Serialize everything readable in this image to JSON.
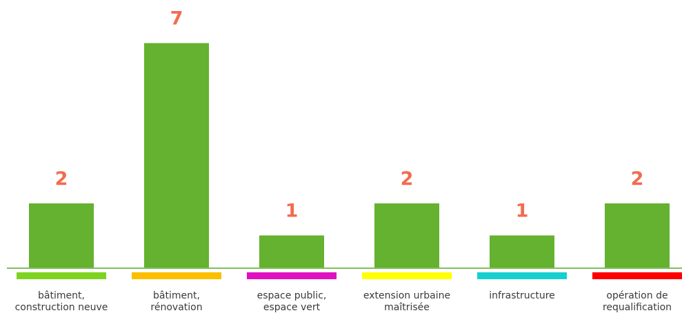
{
  "chart_data": {
    "type": "bar",
    "categories": [
      [
        "bâtiment,",
        "construction neuve"
      ],
      [
        "bâtiment,",
        "rénovation"
      ],
      [
        "espace public,",
        "espace vert"
      ],
      [
        "extension urbaine",
        "maîtrisée"
      ],
      [
        "infrastructure"
      ],
      [
        "opération de",
        "requalification"
      ]
    ],
    "values": [
      2,
      7,
      1,
      2,
      1,
      2
    ],
    "category_colors": [
      "#7ed321",
      "#fbbf00",
      "#e010c0",
      "#ffff00",
      "#16d0d0",
      "#ff0000"
    ],
    "title": "",
    "xlabel": "",
    "ylabel": "",
    "grid": false,
    "legend": "none"
  },
  "colors": {
    "bar": "#64b22f",
    "axis": "#7cc15a",
    "value_label": "#f26c4f",
    "category_text": "#3a3a3a"
  }
}
